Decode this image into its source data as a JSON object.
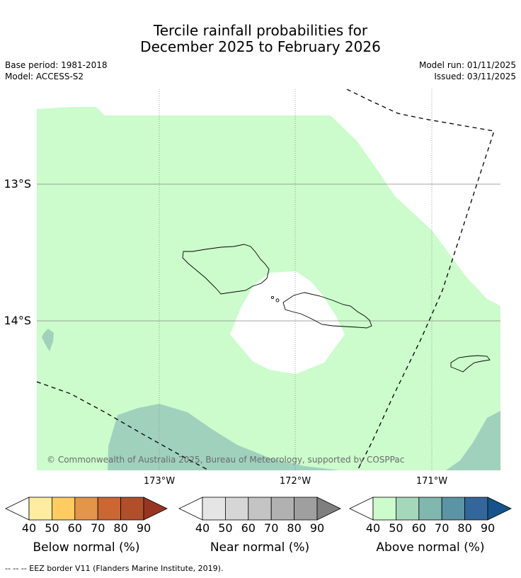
{
  "header": {
    "title_line1": "Tercile rainfall probabilities for",
    "title_line2": "December 2025 to February 2026",
    "base_period": "Base period: 1981-2018",
    "model": "Model: ACCESS-S2",
    "model_run": "Model run: 01/11/2025",
    "issued": "Issued: 03/11/2025"
  },
  "map": {
    "lat_labels": [
      "13°S",
      "14°S"
    ],
    "lon_labels": [
      "173°W",
      "172°W",
      "171°W"
    ],
    "copyright": "© Commonwealth of Australia 2025, Bureau of Meteorology, supported by COSPPac",
    "colors": {
      "above_40_50": "#ccfccc",
      "above_50_60": "#9fd1bd",
      "land_outline": "#000000",
      "grid": "#888888",
      "eez": "#000000"
    }
  },
  "colorbars": [
    {
      "label": "Below normal (%)",
      "ticks": [
        "40",
        "50",
        "60",
        "70",
        "80",
        "90"
      ],
      "colors": [
        "#ffffff",
        "#feeca0",
        "#fecc60",
        "#e3954a",
        "#cc6633",
        "#b04f2a",
        "#983423"
      ]
    },
    {
      "label": "Near normal (%)",
      "ticks": [
        "40",
        "50",
        "60",
        "70",
        "80",
        "90"
      ],
      "colors": [
        "#ffffff",
        "#e5e5e5",
        "#d6d6d6",
        "#c4c4c4",
        "#b1b1b1",
        "#9f9f9f",
        "#7f7f7f"
      ]
    },
    {
      "label": "Above normal (%)",
      "ticks": [
        "40",
        "50",
        "60",
        "70",
        "80",
        "90"
      ],
      "colors": [
        "#ffffff",
        "#ccfccc",
        "#a5d8bb",
        "#80b7ae",
        "#5b94a4",
        "#33679b",
        "#16528b"
      ]
    }
  ],
  "footer": {
    "eez_legend": "--  --  -- EEZ border V11 (Flanders Marine Institute, 2019)."
  }
}
